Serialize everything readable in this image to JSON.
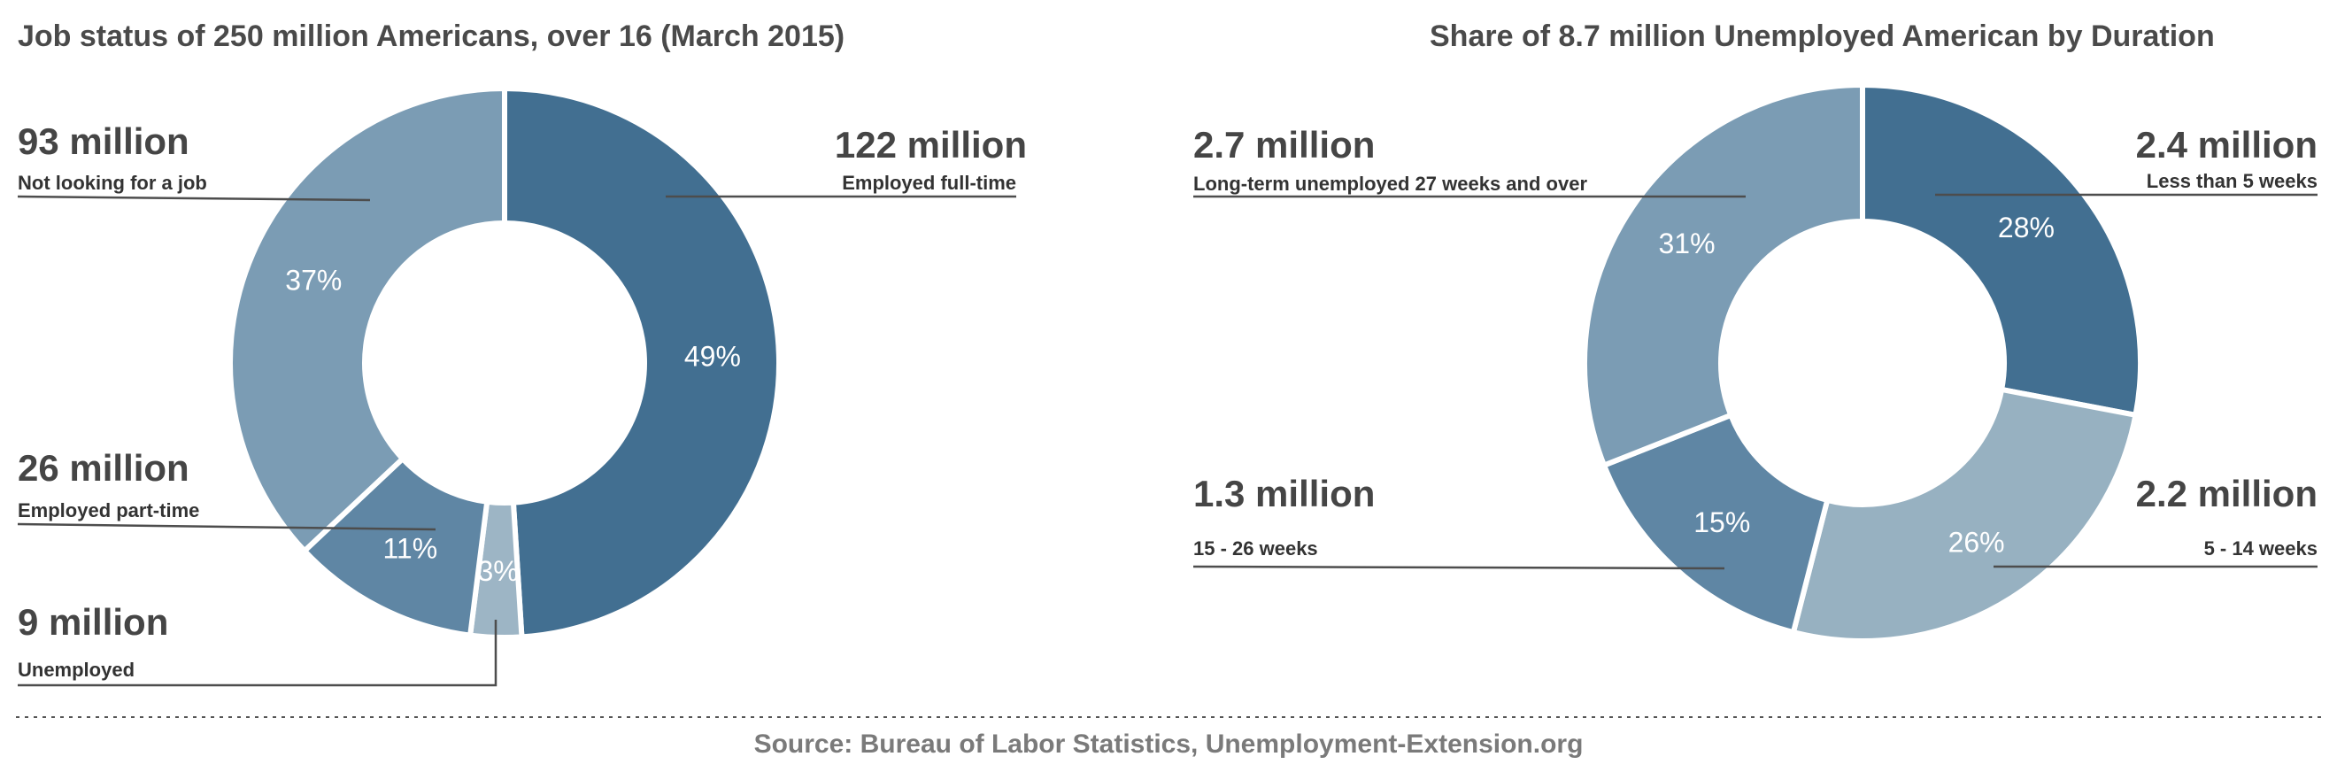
{
  "colors": {
    "dark": "#426f91",
    "mid": "#5f86a4",
    "light": "#7b9cb4",
    "pale": "#97b1c1",
    "lightest": "#9db5c5"
  },
  "source": "Source: Bureau of Labor Statistics, Unemployment-Extension.org",
  "chart_data": [
    {
      "type": "pie",
      "title": "Job status of 250 million Americans, over 16 (March 2015)",
      "slices": [
        {
          "label": "Employed full-time",
          "value_text": "122 million",
          "value": 122,
          "percent": 49,
          "pct_label": "49%",
          "color": "#426f91"
        },
        {
          "label": "Unemployed",
          "value_text": "9 million",
          "value": 9,
          "percent": 3,
          "pct_label": "3%",
          "color": "#9db5c5"
        },
        {
          "label": "Employed part-time",
          "value_text": "26 million",
          "value": 26,
          "percent": 11,
          "pct_label": "11%",
          "color": "#5f86a4"
        },
        {
          "label": "Not looking for a job",
          "value_text": "93 million",
          "value": 93,
          "percent": 37,
          "pct_label": "37%",
          "color": "#7b9cb4"
        }
      ]
    },
    {
      "type": "pie",
      "title": "Share of 8.7 million Unemployed American by Duration",
      "slices": [
        {
          "label": "Less than 5 weeks",
          "value_text": "2.4 million",
          "value": 2.4,
          "percent": 28,
          "pct_label": "28%",
          "color": "#426f91"
        },
        {
          "label": "5 - 14 weeks",
          "value_text": "2.2 million",
          "value": 2.2,
          "percent": 26,
          "pct_label": "26%",
          "color": "#97b1c1"
        },
        {
          "label": "15 - 26 weeks",
          "value_text": "1.3 million",
          "value": 1.3,
          "percent": 15,
          "pct_label": "15%",
          "color": "#5f86a4"
        },
        {
          "label": "Long-term unemployed 27 weeks and over",
          "value_text": "2.7 million",
          "value": 2.7,
          "percent": 31,
          "pct_label": "31%",
          "color": "#7b9cb4"
        }
      ]
    }
  ]
}
